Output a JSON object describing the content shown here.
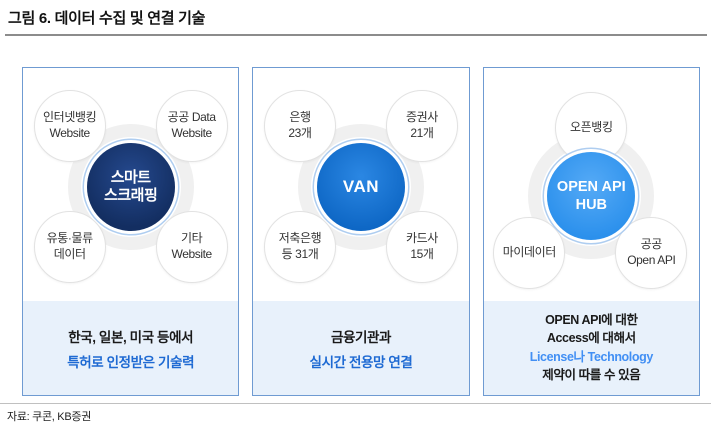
{
  "title": "그림 6. 데이터 수집 및 연결 기술",
  "source": "자료: 쿠콘, KB증권",
  "colors": {
    "panel_border": "#6f9bd2",
    "caption_bg": "#e8f1fb",
    "caption_blue": "#1e6ad3",
    "caption_blue_light": "#418ff4",
    "hub_navy": "#16356b",
    "hub_blue": "#0e67c5",
    "hub_light_blue": "#2b90ec",
    "ring_gray": "#f0f0f0",
    "title_rule_gray": "#8c8c8c"
  },
  "panels": [
    {
      "center": {
        "line1": "스마트",
        "line2": "스크래핑"
      },
      "satellites": {
        "tl": {
          "line1": "인터넷뱅킹",
          "line2": "Website"
        },
        "tr": {
          "line1": "공공 Data",
          "line2": "Website"
        },
        "bl": {
          "line1": "유통·물류",
          "line2": "데이터"
        },
        "br": {
          "line1": "기타",
          "line2": "Website"
        }
      },
      "caption": {
        "line1": "한국, 일본, 미국 등에서",
        "line2": "특허로 인정받은 기술력"
      }
    },
    {
      "center": {
        "line1": "VAN"
      },
      "satellites": {
        "tl": {
          "line1": "은행",
          "line2": "23개"
        },
        "tr": {
          "line1": "증권사",
          "line2": "21개"
        },
        "bl": {
          "line1": "저축은행",
          "line2": "등 31개"
        },
        "br": {
          "line1": "카드사",
          "line2": "15개"
        }
      },
      "caption": {
        "line1": "금융기관과",
        "line2": "실시간 전용망 연결"
      }
    },
    {
      "center": {
        "line1": "OPEN API",
        "line2": "HUB"
      },
      "satellites": {
        "top": {
          "line1": "오픈뱅킹"
        },
        "bl": {
          "line1": "마이데이터"
        },
        "br": {
          "line1": "공공",
          "line2": "Open API"
        }
      },
      "caption": {
        "line1": "OPEN API에 대한",
        "line2": "Access에 대해서",
        "line3": "License나 Technology",
        "line4": "제약이 따를 수 있음"
      }
    }
  ]
}
